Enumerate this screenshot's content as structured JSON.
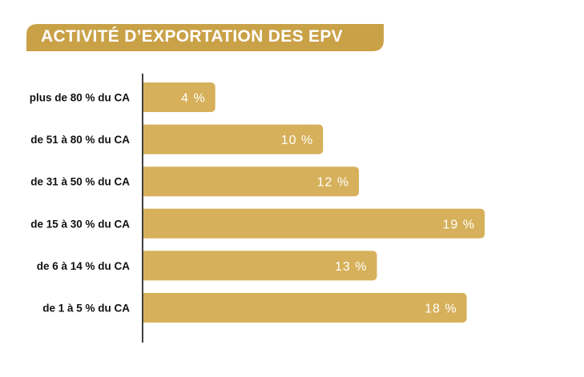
{
  "chart_data": {
    "type": "bar",
    "orientation": "horizontal",
    "title": "ACTIVITÉ D’EXPORTATION DES EPV",
    "categories": [
      "plus de 80 % du CA",
      "de 51 à 80 % du CA",
      "de 31 à 50 % du CA",
      "de 15 à 30 % du CA",
      "de 6 à 14 % du CA",
      "de 1 à 5 % du CA"
    ],
    "values": [
      4,
      10,
      12,
      19,
      13,
      18
    ],
    "value_labels": [
      "4 %",
      "10 %",
      "12 %",
      "19 %",
      "13 %",
      "18 %"
    ],
    "unit": "%",
    "xlim": [
      0,
      19
    ],
    "grid": false,
    "legend": "none"
  },
  "colors": {
    "bar": "#d6b05a",
    "title_bg": "#c9a147",
    "title_text": "#ffffff",
    "axis": "#111111",
    "label": "#111111",
    "value_text": "#ffffff"
  }
}
